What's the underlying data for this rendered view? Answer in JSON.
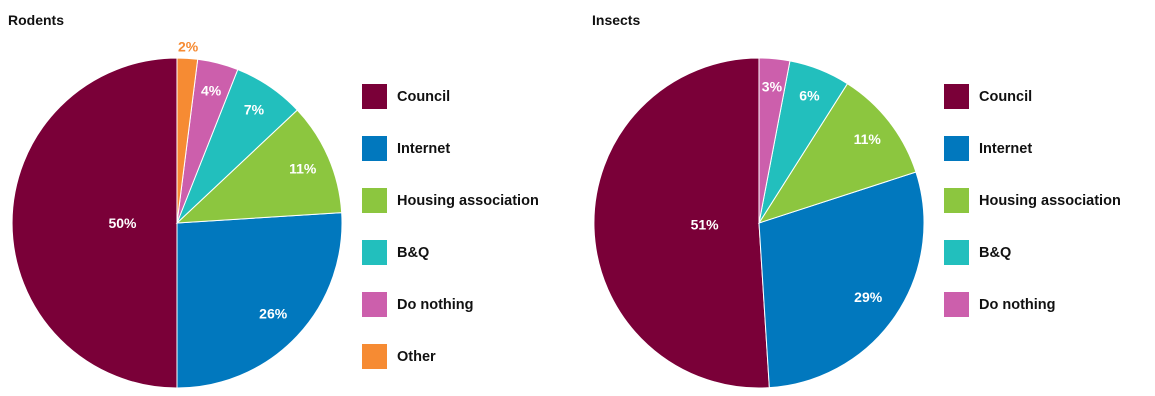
{
  "palette": {
    "Council": "#7a0038",
    "Internet": "#0178be",
    "Housing association": "#8cc63f",
    "B&Q": "#22bfbd",
    "Do nothing": "#cc5fac",
    "Other": "#f68b33"
  },
  "chart_data": [
    {
      "type": "pie",
      "title": "Rodents",
      "start_angle": "12 o'clock",
      "direction": "counter-clockwise",
      "legend_placement": "right",
      "slices": [
        {
          "label": "Council",
          "value": 50,
          "display": "50%"
        },
        {
          "label": "Internet",
          "value": 26,
          "display": "26%"
        },
        {
          "label": "Housing association",
          "value": 11,
          "display": "11%"
        },
        {
          "label": "B&Q",
          "value": 7,
          "display": "7%"
        },
        {
          "label": "Do nothing",
          "value": 4,
          "display": "4%"
        },
        {
          "label": "Other",
          "value": 2,
          "display": "2%"
        }
      ]
    },
    {
      "type": "pie",
      "title": "Insects",
      "start_angle": "12 o'clock",
      "direction": "counter-clockwise",
      "legend_placement": "right",
      "slices": [
        {
          "label": "Council",
          "value": 51,
          "display": "51%"
        },
        {
          "label": "Internet",
          "value": 29,
          "display": "29%"
        },
        {
          "label": "Housing association",
          "value": 11,
          "display": "11%"
        },
        {
          "label": "B&Q",
          "value": 6,
          "display": "6%"
        },
        {
          "label": "Do nothing",
          "value": 3,
          "display": "3%"
        }
      ]
    }
  ]
}
